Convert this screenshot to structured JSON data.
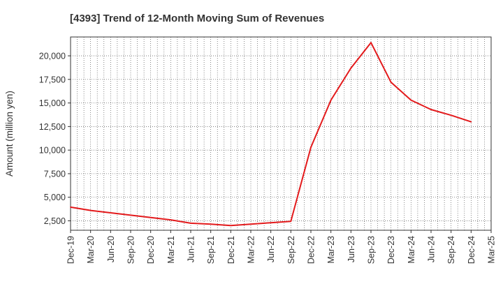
{
  "chart_data": {
    "type": "line",
    "title": "[4393]  Trend of 12-Month Moving Sum of Revenues",
    "xlabel": "",
    "ylabel": "Amount (million yen)",
    "x": [
      "Dec-19",
      "Mar-20",
      "Jun-20",
      "Sep-20",
      "Dec-20",
      "Mar-21",
      "Jun-21",
      "Sep-21",
      "Dec-21",
      "Mar-22",
      "Jun-22",
      "Sep-22",
      "Dec-22",
      "Mar-23",
      "Jun-23",
      "Sep-23",
      "Dec-23",
      "Mar-24",
      "Jun-24",
      "Sep-24",
      "Dec-24",
      "Mar-25"
    ],
    "series": [
      {
        "values": [
          3950,
          3600,
          3350,
          3100,
          2850,
          2600,
          2250,
          2150,
          2000,
          2150,
          2300,
          2450,
          10300,
          15300,
          18700,
          21400,
          17200,
          15300,
          14300,
          13700,
          13000,
          null
        ],
        "color": "#e31a1c"
      }
    ],
    "yticks": [
      2500,
      5000,
      7500,
      10000,
      12500,
      15000,
      17500,
      20000
    ],
    "ytick_labels": [
      "2,500",
      "5,000",
      "7,500",
      "10,000",
      "12,500",
      "15,000",
      "17,500",
      "20,000"
    ],
    "ylim": [
      1500,
      22000
    ],
    "grid": true,
    "legend": "none"
  }
}
